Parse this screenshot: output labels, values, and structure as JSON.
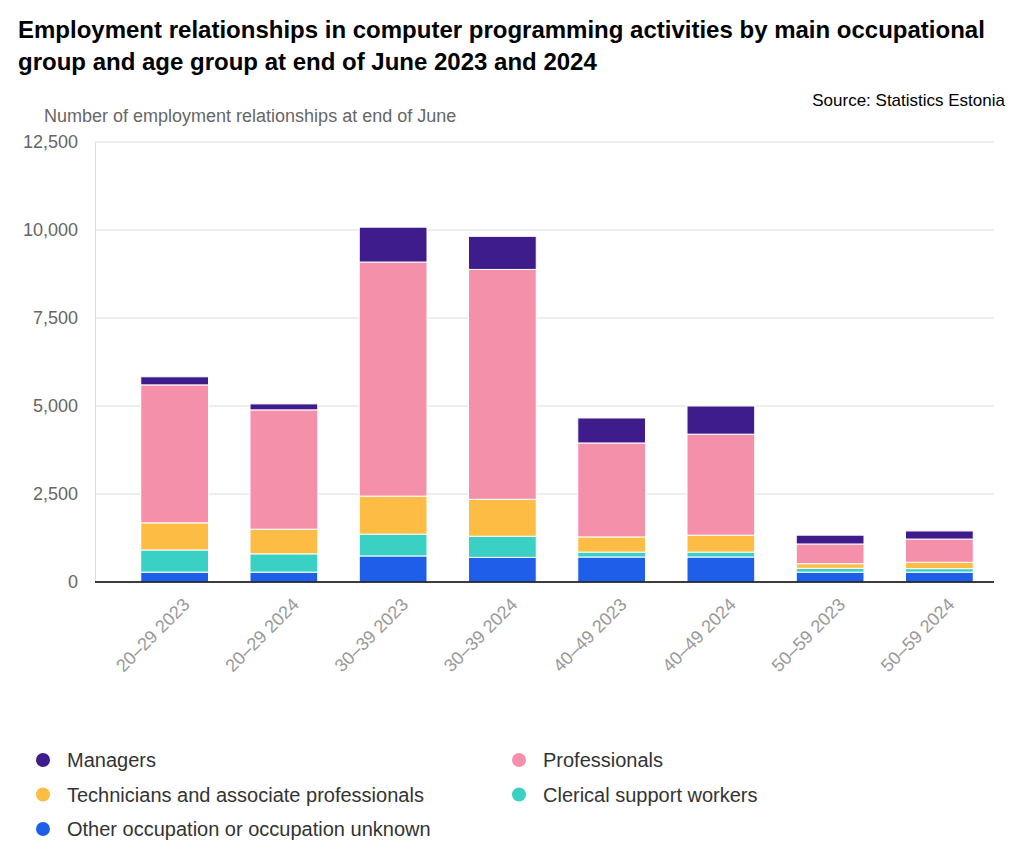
{
  "chart_data": {
    "type": "bar",
    "stacked": true,
    "grid": true,
    "legend": "bottom",
    "title": "Employment relationships in computer programming activities by main occupational group and age group at end of June 2023 and 2024",
    "source": "Source: Statistics Estonia",
    "y_label": "Number of employment relationships at end of June",
    "categories": [
      "20–29 2023",
      "20–29 2024",
      "30–39 2023",
      "30–39 2024",
      "40–49 2023",
      "40–49 2024",
      "50–59 2023",
      "50–59 2024"
    ],
    "ylim": [
      0,
      12500
    ],
    "yticks": [
      0,
      {
        "value": 2500,
        "label": "2,500"
      },
      {
        "value": 5000,
        "label": "5,000"
      },
      {
        "value": 7500,
        "label": "7,500"
      },
      {
        "value": 10000,
        "label": "10,000"
      },
      {
        "value": 12500,
        "label": "12,500"
      }
    ],
    "series": [
      {
        "name": "Managers",
        "color": "#3f1c8c",
        "values": [
          230,
          170,
          990,
          940,
          710,
          800,
          250,
          230
        ]
      },
      {
        "name": "Professionals",
        "color": "#f590aa",
        "values": [
          3920,
          3390,
          6650,
          6530,
          2670,
          2870,
          560,
          660
        ]
      },
      {
        "name": "Technicians and associate professionals",
        "color": "#fdbd45",
        "values": [
          770,
          700,
          1080,
          1050,
          430,
          480,
          130,
          180
        ]
      },
      {
        "name": "Clerical support workers",
        "color": "#3ad0c4",
        "values": [
          630,
          520,
          620,
          600,
          140,
          140,
          110,
          100
        ]
      },
      {
        "name": "Other occupation or occupation unknown",
        "color": "#1f5ee8",
        "values": [
          280,
          280,
          740,
          700,
          710,
          710,
          280,
          280
        ]
      }
    ]
  }
}
